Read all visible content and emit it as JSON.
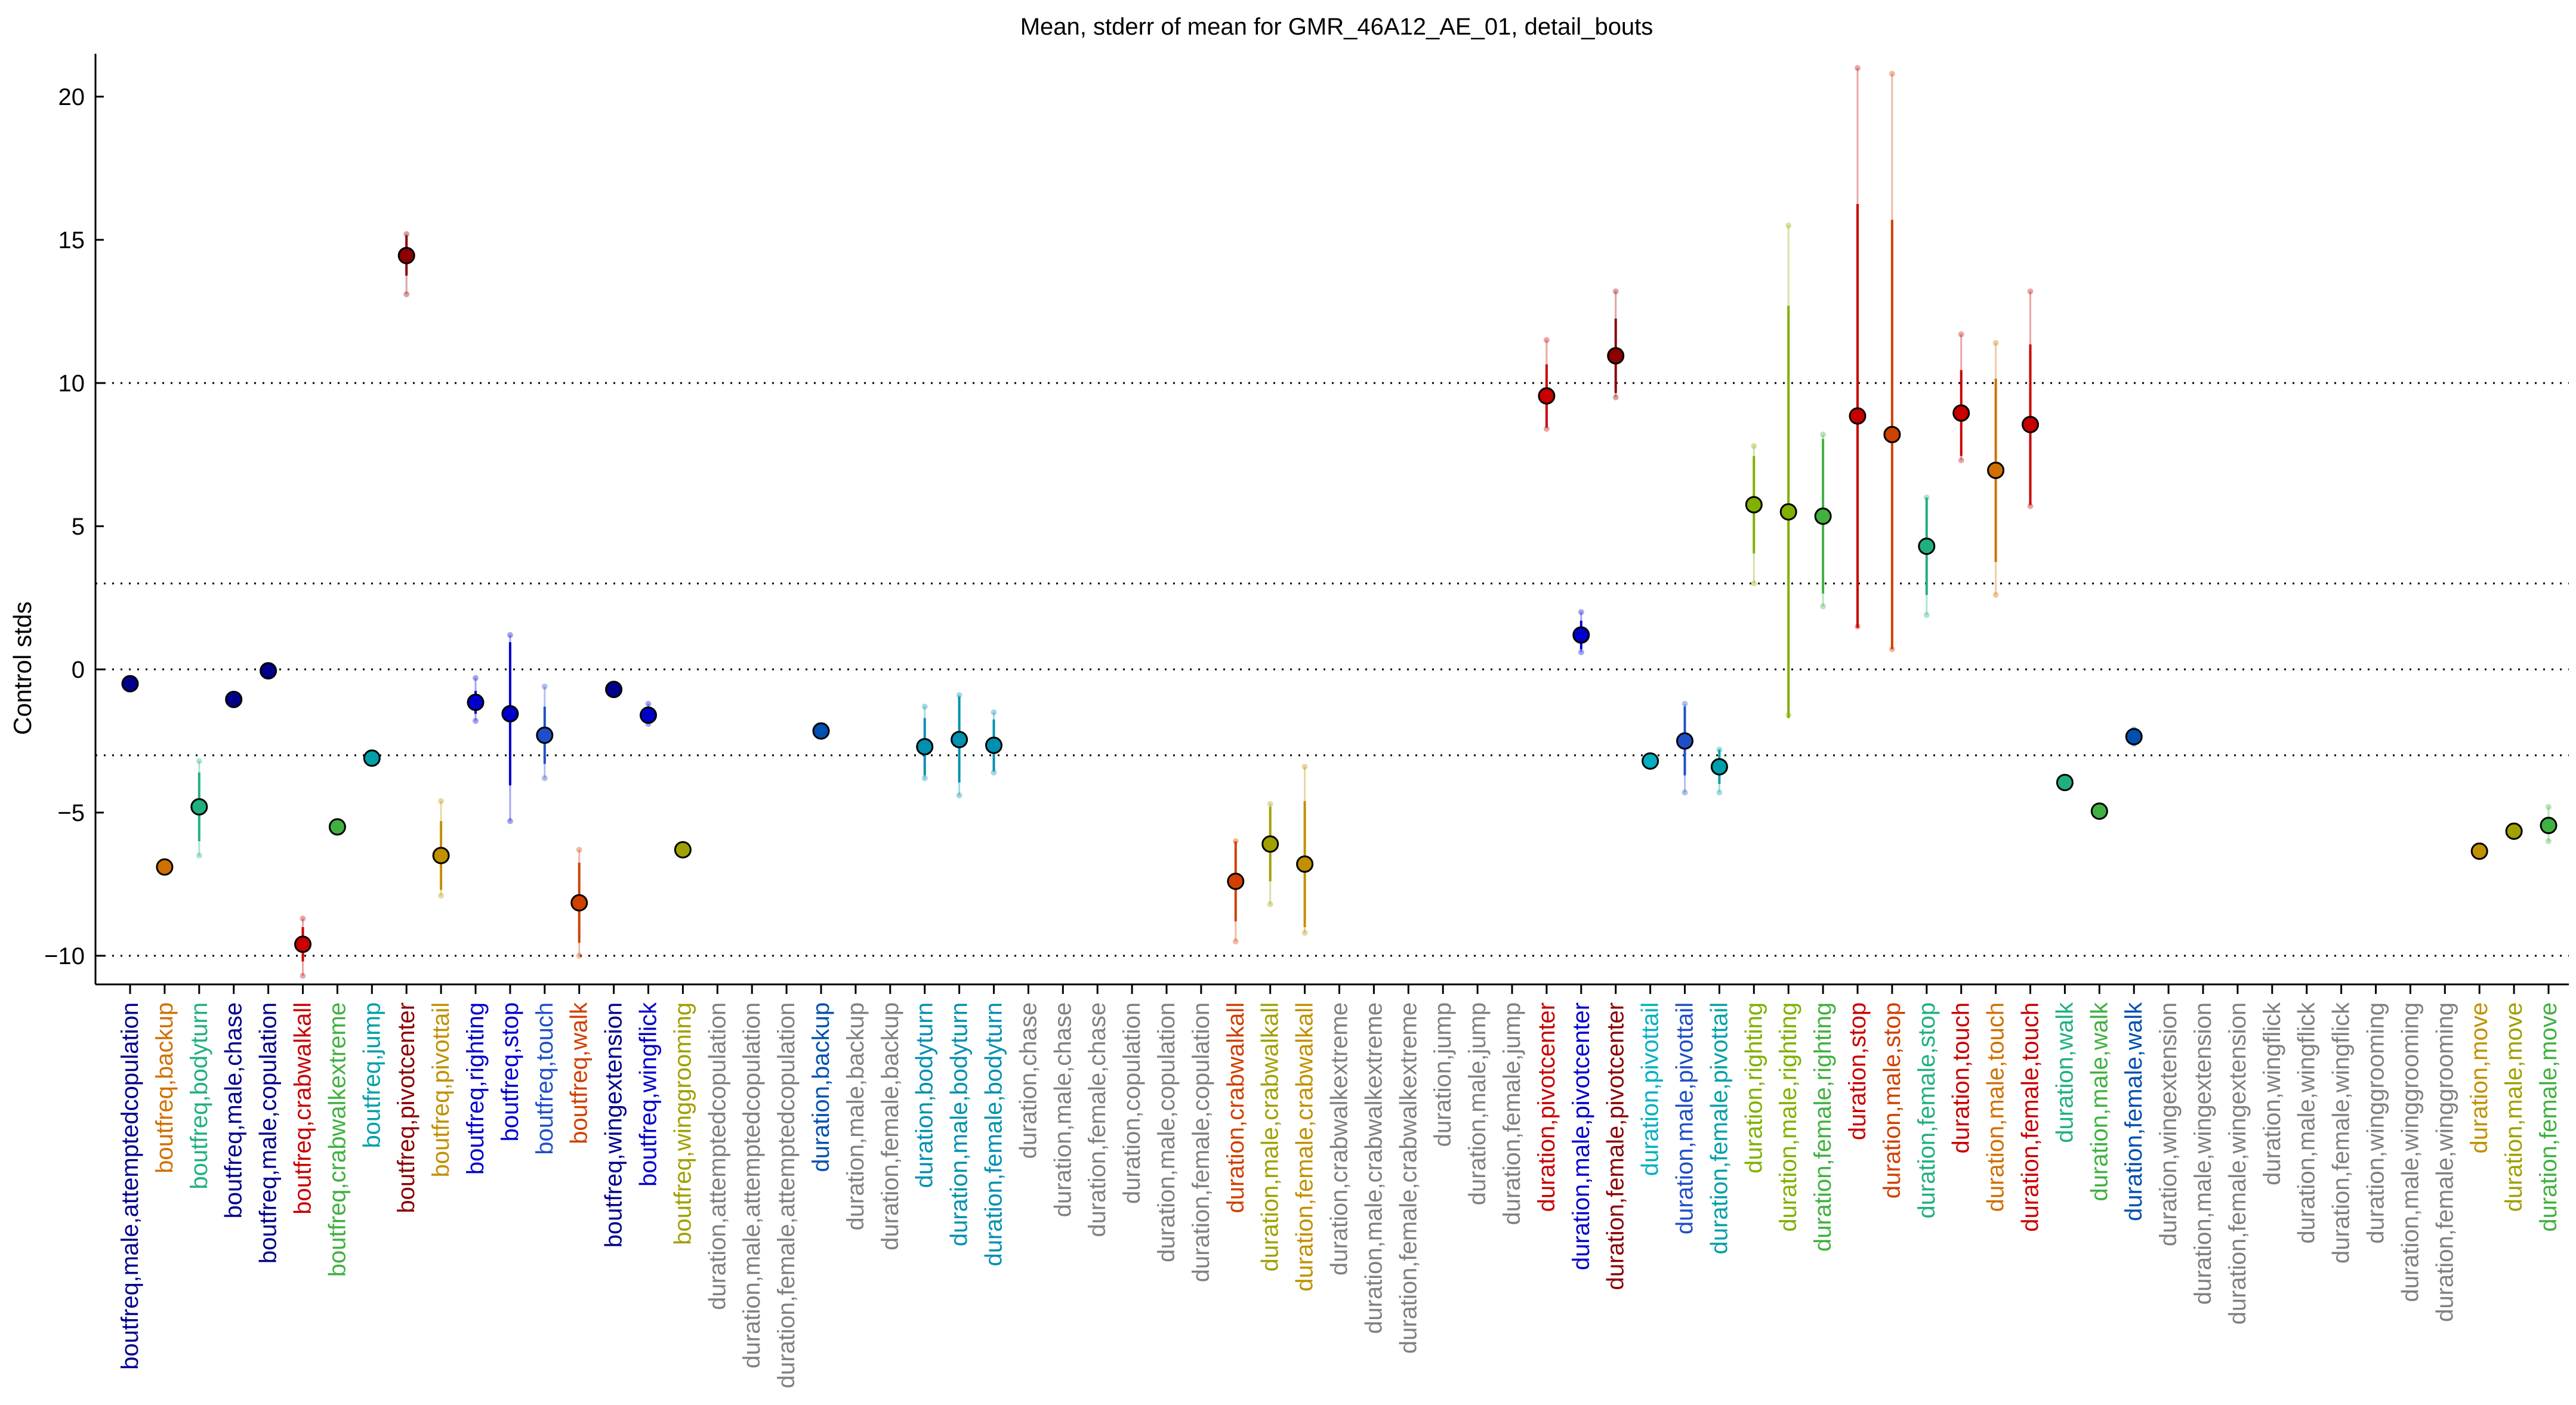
{
  "chart_data": {
    "type": "scatter",
    "title": "Mean, stderr of mean for GMR_46A12_AE_01, detail_bouts",
    "xlabel": "",
    "ylabel": "Control stds",
    "ylim": [
      -11,
      21.5
    ],
    "yticks": [
      -10,
      -5,
      0,
      5,
      10,
      15,
      20
    ],
    "ytick_labels": [
      "−10",
      "−5",
      "0",
      "5",
      "10",
      "15",
      "20"
    ],
    "reference_lines": [
      -10,
      -3,
      0,
      3,
      10
    ],
    "grid": false,
    "colors": {
      "navy": "#00008b",
      "blue": "#0000cd",
      "royal": "#1f4fc8",
      "blue2": "#0050b0",
      "teal": "#00a0a8",
      "teal2": "#0090b0",
      "cyan": "#00b0c0",
      "seagreen": "#20b080",
      "green": "#40b040",
      "lime": "#80b000",
      "olive": "#a0a000",
      "gold": "#c09000",
      "orange": "#d07000",
      "burnt": "#d04000",
      "red": "#c80000",
      "darkred": "#8b0000",
      "gray": "#808080"
    },
    "categories": [
      {
        "label": "boutfreq,male,attemptedcopulation",
        "color": "navy",
        "mean": -0.5,
        "stderr": 0.1,
        "range": [
          -0.6,
          -0.4
        ]
      },
      {
        "label": "boutfreq,backup",
        "color": "orange",
        "mean": -6.9,
        "stderr": 0.1,
        "range": [
          -7.0,
          -6.8
        ]
      },
      {
        "label": "boutfreq,bodyturn",
        "color": "seagreen",
        "mean": -4.8,
        "stderr": 1.2,
        "range": [
          -6.5,
          -3.2
        ]
      },
      {
        "label": "boutfreq,male,chase",
        "color": "navy",
        "mean": -1.05,
        "stderr": 0.1,
        "range": [
          -1.15,
          -0.95
        ]
      },
      {
        "label": "boutfreq,male,copulation",
        "color": "navy",
        "mean": -0.05,
        "stderr": 0.05,
        "range": [
          -0.1,
          0.0
        ]
      },
      {
        "label": "boutfreq,crabwalkall",
        "color": "red",
        "mean": -9.6,
        "stderr": 0.6,
        "range": [
          -10.7,
          -8.7
        ]
      },
      {
        "label": "boutfreq,crabwalkextreme",
        "color": "green",
        "mean": -5.5,
        "stderr": 0.1,
        "range": [
          -5.6,
          -5.4
        ]
      },
      {
        "label": "boutfreq,jump",
        "color": "teal",
        "mean": -3.1,
        "stderr": 0.1,
        "range": [
          -3.2,
          -3.0
        ]
      },
      {
        "label": "boutfreq,pivotcenter",
        "color": "darkred",
        "mean": 14.45,
        "stderr": 0.7,
        "range": [
          13.1,
          15.2
        ]
      },
      {
        "label": "boutfreq,pivottail",
        "color": "gold",
        "mean": -6.5,
        "stderr": 1.2,
        "range": [
          -7.9,
          -4.6
        ]
      },
      {
        "label": "boutfreq,righting",
        "color": "blue",
        "mean": -1.15,
        "stderr": 0.4,
        "range": [
          -1.8,
          -0.3
        ]
      },
      {
        "label": "boutfreq,stop",
        "color": "blue",
        "mean": -1.55,
        "stderr": 2.5,
        "range": [
          -5.3,
          1.2
        ]
      },
      {
        "label": "boutfreq,touch",
        "color": "royal",
        "mean": -2.3,
        "stderr": 1.0,
        "range": [
          -3.8,
          -0.6
        ]
      },
      {
        "label": "boutfreq,walk",
        "color": "burnt",
        "mean": -8.15,
        "stderr": 1.4,
        "range": [
          -10.0,
          -6.3
        ]
      },
      {
        "label": "boutfreq,wingextension",
        "color": "navy",
        "mean": -0.7,
        "stderr": 0.1,
        "range": [
          -0.8,
          -0.6
        ]
      },
      {
        "label": "boutfreq,wingflick",
        "color": "blue",
        "mean": -1.6,
        "stderr": 0.3,
        "range": [
          -1.9,
          -1.2
        ]
      },
      {
        "label": "boutfreq,winggrooming",
        "color": "olive",
        "mean": -6.3,
        "stderr": 0.1,
        "range": [
          -6.4,
          -6.2
        ]
      },
      {
        "label": "duration,attemptedcopulation",
        "color": "gray"
      },
      {
        "label": "duration,male,attemptedcopulation",
        "color": "gray"
      },
      {
        "label": "duration,female,attemptedcopulation",
        "color": "gray"
      },
      {
        "label": "duration,backup",
        "color": "blue2",
        "mean": -2.15,
        "stderr": 0.1,
        "range": [
          -2.25,
          -2.05
        ]
      },
      {
        "label": "duration,male,backup",
        "color": "gray"
      },
      {
        "label": "duration,female,backup",
        "color": "gray"
      },
      {
        "label": "duration,bodyturn",
        "color": "teal2",
        "mean": -2.7,
        "stderr": 1.0,
        "range": [
          -3.8,
          -1.3
        ]
      },
      {
        "label": "duration,male,bodyturn",
        "color": "teal2",
        "mean": -2.45,
        "stderr": 1.5,
        "range": [
          -4.4,
          -0.9
        ]
      },
      {
        "label": "duration,female,bodyturn",
        "color": "teal2",
        "mean": -2.65,
        "stderr": 0.9,
        "range": [
          -3.6,
          -1.5
        ]
      },
      {
        "label": "duration,chase",
        "color": "gray"
      },
      {
        "label": "duration,male,chase",
        "color": "gray"
      },
      {
        "label": "duration,female,chase",
        "color": "gray"
      },
      {
        "label": "duration,copulation",
        "color": "gray"
      },
      {
        "label": "duration,male,copulation",
        "color": "gray"
      },
      {
        "label": "duration,female,copulation",
        "color": "gray"
      },
      {
        "label": "duration,crabwalkall",
        "color": "burnt",
        "mean": -7.4,
        "stderr": 1.4,
        "range": [
          -9.5,
          -6.0
        ]
      },
      {
        "label": "duration,male,crabwalkall",
        "color": "olive",
        "mean": -6.1,
        "stderr": 1.3,
        "range": [
          -8.2,
          -4.7
        ]
      },
      {
        "label": "duration,female,crabwalkall",
        "color": "gold",
        "mean": -6.8,
        "stderr": 2.2,
        "range": [
          -9.2,
          -3.4
        ]
      },
      {
        "label": "duration,crabwalkextreme",
        "color": "gray"
      },
      {
        "label": "duration,male,crabwalkextreme",
        "color": "gray"
      },
      {
        "label": "duration,female,crabwalkextreme",
        "color": "gray"
      },
      {
        "label": "duration,jump",
        "color": "gray"
      },
      {
        "label": "duration,male,jump",
        "color": "gray"
      },
      {
        "label": "duration,female,jump",
        "color": "gray"
      },
      {
        "label": "duration,pivotcenter",
        "color": "red",
        "mean": 9.55,
        "stderr": 1.1,
        "range": [
          8.4,
          11.5
        ]
      },
      {
        "label": "duration,male,pivotcenter",
        "color": "blue",
        "mean": 1.2,
        "stderr": 0.5,
        "range": [
          0.6,
          2.0
        ]
      },
      {
        "label": "duration,female,pivotcenter",
        "color": "darkred",
        "mean": 10.95,
        "stderr": 1.3,
        "range": [
          9.5,
          13.2
        ]
      },
      {
        "label": "duration,pivottail",
        "color": "cyan",
        "mean": -3.2,
        "stderr": 0.1,
        "range": [
          -3.3,
          -3.1
        ]
      },
      {
        "label": "duration,male,pivottail",
        "color": "royal",
        "mean": -2.5,
        "stderr": 1.2,
        "range": [
          -4.3,
          -1.2
        ]
      },
      {
        "label": "duration,female,pivottail",
        "color": "teal",
        "mean": -3.4,
        "stderr": 0.6,
        "range": [
          -4.3,
          -2.8
        ]
      },
      {
        "label": "duration,righting",
        "color": "lime",
        "mean": 5.75,
        "stderr": 1.7,
        "range": [
          3.0,
          7.8
        ]
      },
      {
        "label": "duration,male,righting",
        "color": "lime",
        "mean": 5.5,
        "stderr": 7.2,
        "range": [
          -1.6,
          15.5
        ]
      },
      {
        "label": "duration,female,righting",
        "color": "green",
        "mean": 5.35,
        "stderr": 2.7,
        "range": [
          2.2,
          8.2
        ]
      },
      {
        "label": "duration,stop",
        "color": "red",
        "mean": 8.85,
        "stderr": 7.4,
        "range": [
          1.5,
          21.0
        ]
      },
      {
        "label": "duration,male,stop",
        "color": "burnt",
        "mean": 8.2,
        "stderr": 7.5,
        "range": [
          0.7,
          20.8
        ]
      },
      {
        "label": "duration,female,stop",
        "color": "seagreen",
        "mean": 4.3,
        "stderr": 1.7,
        "range": [
          1.9,
          6.0
        ]
      },
      {
        "label": "duration,touch",
        "color": "red",
        "mean": 8.95,
        "stderr": 1.5,
        "range": [
          7.3,
          11.7
        ]
      },
      {
        "label": "duration,male,touch",
        "color": "orange",
        "mean": 6.95,
        "stderr": 3.2,
        "range": [
          2.6,
          11.4
        ]
      },
      {
        "label": "duration,female,touch",
        "color": "red",
        "mean": 8.55,
        "stderr": 2.8,
        "range": [
          5.7,
          13.2
        ]
      },
      {
        "label": "duration,walk",
        "color": "seagreen",
        "mean": -3.95,
        "stderr": 0.1,
        "range": [
          -4.05,
          -3.85
        ]
      },
      {
        "label": "duration,male,walk",
        "color": "green",
        "mean": -4.95,
        "stderr": 0.1,
        "range": [
          -5.05,
          -4.85
        ]
      },
      {
        "label": "duration,female,walk",
        "color": "blue2",
        "mean": -2.35,
        "stderr": 0.2,
        "range": [
          -2.6,
          -2.1
        ]
      },
      {
        "label": "duration,wingextension",
        "color": "gray"
      },
      {
        "label": "duration,male,wingextension",
        "color": "gray"
      },
      {
        "label": "duration,female,wingextension",
        "color": "gray"
      },
      {
        "label": "duration,wingflick",
        "color": "gray"
      },
      {
        "label": "duration,male,wingflick",
        "color": "gray"
      },
      {
        "label": "duration,female,wingflick",
        "color": "gray"
      },
      {
        "label": "duration,winggrooming",
        "color": "gray"
      },
      {
        "label": "duration,male,winggrooming",
        "color": "gray"
      },
      {
        "label": "duration,female,winggrooming",
        "color": "gray"
      },
      {
        "label": "duration,move",
        "color": "gold",
        "mean": -6.35,
        "stderr": 0.1,
        "range": [
          -6.45,
          -6.25
        ]
      },
      {
        "label": "duration,male,move",
        "color": "olive",
        "mean": -5.65,
        "stderr": 0.2,
        "range": [
          -5.85,
          -5.45
        ]
      },
      {
        "label": "duration,female,move",
        "color": "green",
        "mean": -5.45,
        "stderr": 0.3,
        "range": [
          -6.0,
          -4.8
        ]
      }
    ]
  }
}
